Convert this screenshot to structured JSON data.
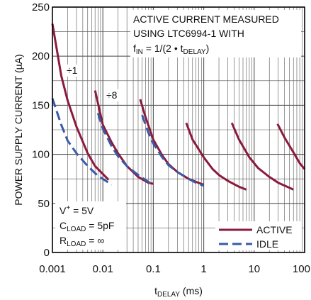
{
  "chart_data": {
    "type": "line",
    "title": "",
    "xlabel": {
      "main": "t",
      "sub": "DELAY",
      "unit": " (ms)"
    },
    "ylabel": "POWER SUPPLY CURRENT (µA)",
    "x_scale": "log",
    "xlim": [
      0.001,
      100
    ],
    "ylim": [
      0,
      250
    ],
    "grid": true,
    "legend_position": "bottom-right",
    "x_ticks": [
      {
        "value": 0.001,
        "label": "0.001"
      },
      {
        "value": 0.01,
        "label": "0.01"
      },
      {
        "value": 0.1,
        "label": "0.1"
      },
      {
        "value": 1,
        "label": "1"
      },
      {
        "value": 10,
        "label": "10"
      },
      {
        "value": 100,
        "label": "100"
      }
    ],
    "y_ticks": [
      {
        "value": 0,
        "label": "0"
      },
      {
        "value": 50,
        "label": "50"
      },
      {
        "value": 100,
        "label": "100"
      },
      {
        "value": 150,
        "label": "150"
      },
      {
        "value": 200,
        "label": "200"
      },
      {
        "value": 250,
        "label": "250"
      }
    ],
    "colors": {
      "active": "#8b1a3c",
      "idle": "#3a5aa8",
      "grid": "#555555",
      "axis": "#000000"
    },
    "annotations": {
      "box_line1": "ACTIVE CURRENT MEASURED",
      "box_line2": "USING LTC6994-1 WITH",
      "fin": {
        "pre": "f",
        "pre_sub": "IN",
        "mid": " = 1/(2 • t",
        "sub": "DELAY",
        "post": ")"
      },
      "div1": "÷1",
      "div8": "÷8",
      "vplus": {
        "pre": "V",
        "sup": "+",
        "post": " = 5V"
      },
      "cload": {
        "pre": "C",
        "sub": "LOAD",
        "post": " = 5pF"
      },
      "rload": {
        "pre": "R",
        "sub": "LOAD",
        "post": " = ∞"
      }
    },
    "series": [
      {
        "name": "ACTIVE",
        "style": "solid",
        "segments": [
          [
            [
              0.001,
              233
            ],
            [
              0.0015,
              180
            ],
            [
              0.002,
              155
            ],
            [
              0.003,
              128
            ],
            [
              0.005,
              101
            ],
            [
              0.007,
              88
            ],
            [
              0.01,
              80
            ],
            [
              0.013,
              74
            ]
          ],
          [
            [
              0.007,
              165
            ],
            [
              0.01,
              130
            ],
            [
              0.015,
              112
            ],
            [
              0.02,
              101
            ],
            [
              0.03,
              88
            ],
            [
              0.05,
              77
            ],
            [
              0.08,
              71
            ],
            [
              0.1,
              70
            ]
          ],
          [
            [
              0.055,
              156
            ],
            [
              0.07,
              138
            ],
            [
              0.1,
              115
            ],
            [
              0.15,
              99
            ],
            [
              0.2,
              90
            ],
            [
              0.3,
              82
            ],
            [
              0.5,
              75
            ],
            [
              0.7,
              72
            ],
            [
              1,
              69
            ]
          ],
          [
            [
              0.45,
              132
            ],
            [
              0.6,
              115
            ],
            [
              1,
              97
            ],
            [
              1.5,
              85
            ],
            [
              2,
              79
            ],
            [
              3,
              73
            ],
            [
              5,
              67
            ],
            [
              7,
              64
            ]
          ],
          [
            [
              3.6,
              132
            ],
            [
              5,
              115
            ],
            [
              8,
              97
            ],
            [
              12,
              86
            ],
            [
              20,
              77
            ],
            [
              30,
              71
            ],
            [
              50,
              66
            ],
            [
              60,
              64
            ]
          ],
          [
            [
              29,
              131
            ],
            [
              40,
              117
            ],
            [
              60,
              102
            ],
            [
              80,
              91
            ],
            [
              100,
              85
            ]
          ]
        ]
      },
      {
        "name": "IDLE",
        "style": "dashed",
        "segments": [
          [
            [
              0.001,
              157
            ],
            [
              0.0015,
              130
            ],
            [
              0.002,
              114
            ],
            [
              0.003,
              101
            ],
            [
              0.005,
              88
            ],
            [
              0.008,
              78
            ],
            [
              0.01,
              75
            ],
            [
              0.015,
              69
            ]
          ],
          [
            [
              0.008,
              142
            ],
            [
              0.01,
              126
            ],
            [
              0.015,
              108
            ],
            [
              0.02,
              98
            ],
            [
              0.03,
              88
            ],
            [
              0.05,
              79
            ],
            [
              0.08,
              72
            ],
            [
              0.1,
              68
            ]
          ],
          [
            [
              0.06,
              140
            ],
            [
              0.08,
              122
            ],
            [
              0.1,
              111
            ],
            [
              0.15,
              97
            ],
            [
              0.2,
              89
            ],
            [
              0.3,
              82
            ],
            [
              0.5,
              75
            ],
            [
              0.7,
              71
            ],
            [
              1,
              68
            ]
          ]
        ]
      }
    ]
  }
}
